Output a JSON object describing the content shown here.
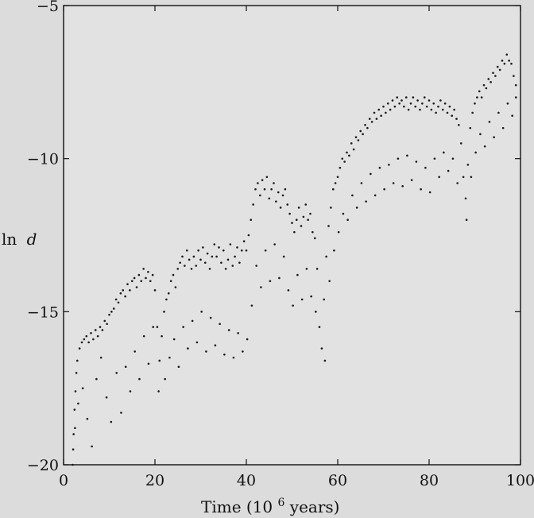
{
  "chart_data": {
    "type": "scatter",
    "title": "",
    "xlabel": "Time (10",
    "xlabel_sup": "6",
    "xlabel_suffix": " years)",
    "ylabel": "ln",
    "ylabel_var": "d",
    "xlim": [
      0,
      100
    ],
    "ylim": [
      -20,
      -5
    ],
    "x_ticks": [
      0,
      20,
      40,
      60,
      80,
      100
    ],
    "x_tick_labels": [
      "0",
      "20",
      "40",
      "60",
      "80",
      "100"
    ],
    "y_ticks": [
      -20,
      -15,
      -10,
      -5
    ],
    "y_tick_labels": [
      "−20",
      "−15",
      "−10",
      "−5"
    ],
    "grid": false,
    "legend": "none",
    "point_color": "#1a1a1a",
    "series": [
      {
        "values": [
          [
            2.0,
            -20.0
          ],
          [
            2.2,
            -19.0
          ],
          [
            2.4,
            -18.2
          ],
          [
            2.6,
            -17.6
          ],
          [
            2.8,
            -17.0
          ],
          [
            3.0,
            -16.6
          ],
          [
            3.5,
            -16.2
          ],
          [
            4.0,
            -16.0
          ],
          [
            4.5,
            -15.9
          ],
          [
            5.0,
            -15.8
          ],
          [
            5.5,
            -16.0
          ],
          [
            6.0,
            -15.7
          ],
          [
            6.5,
            -15.9
          ],
          [
            7.0,
            -15.6
          ],
          [
            7.5,
            -15.8
          ],
          [
            8.0,
            -15.5
          ],
          [
            8.5,
            -15.6
          ],
          [
            9.0,
            -15.3
          ],
          [
            9.5,
            -15.4
          ],
          [
            10.0,
            -15.1
          ],
          [
            10.5,
            -15.0
          ],
          [
            11.0,
            -14.9
          ],
          [
            11.5,
            -14.6
          ],
          [
            12.0,
            -14.7
          ],
          [
            12.5,
            -14.4
          ],
          [
            13.0,
            -14.3
          ],
          [
            13.5,
            -14.5
          ],
          [
            14.0,
            -14.1
          ],
          [
            14.5,
            -14.3
          ],
          [
            15.0,
            -14.0
          ],
          [
            15.5,
            -13.9
          ],
          [
            16.0,
            -14.2
          ],
          [
            16.5,
            -13.8
          ],
          [
            17.0,
            -14.0
          ],
          [
            17.5,
            -13.6
          ],
          [
            18.0,
            -13.9
          ],
          [
            18.5,
            -13.7
          ],
          [
            19.0,
            -14.0
          ],
          [
            19.5,
            -13.8
          ],
          [
            20.0,
            -14.3
          ],
          [
            20.5,
            -15.5
          ],
          [
            21.0,
            -16.6
          ],
          [
            21.5,
            -15.8
          ],
          [
            22.0,
            -15.0
          ],
          [
            22.5,
            -14.6
          ],
          [
            23.0,
            -14.4
          ],
          [
            23.5,
            -14.0
          ],
          [
            24.0,
            -13.8
          ],
          [
            24.5,
            -14.2
          ],
          [
            25.0,
            -13.6
          ],
          [
            25.5,
            -13.4
          ],
          [
            26.0,
            -13.2
          ],
          [
            26.5,
            -13.5
          ],
          [
            27.0,
            -13.0
          ],
          [
            27.5,
            -13.3
          ],
          [
            28.0,
            -13.6
          ],
          [
            28.5,
            -13.2
          ],
          [
            29.0,
            -13.5
          ],
          [
            29.5,
            -13.0
          ],
          [
            30.0,
            -13.3
          ],
          [
            30.5,
            -12.9
          ],
          [
            31.0,
            -13.4
          ],
          [
            31.5,
            -13.1
          ],
          [
            32.0,
            -13.6
          ],
          [
            32.5,
            -13.2
          ],
          [
            33.0,
            -12.8
          ],
          [
            33.5,
            -13.2
          ],
          [
            34.0,
            -12.9
          ],
          [
            34.5,
            -13.4
          ],
          [
            35.0,
            -13.0
          ],
          [
            35.5,
            -13.6
          ],
          [
            36.0,
            -13.3
          ],
          [
            36.5,
            -12.8
          ],
          [
            37.0,
            -13.5
          ],
          [
            37.5,
            -13.2
          ],
          [
            38.0,
            -12.9
          ],
          [
            38.5,
            -13.4
          ],
          [
            39.0,
            -13.0
          ],
          [
            39.5,
            -12.7
          ],
          [
            40.0,
            -13.0
          ],
          [
            40.5,
            -12.5
          ],
          [
            41.0,
            -12.0
          ],
          [
            41.5,
            -11.5
          ],
          [
            42.0,
            -11.0
          ],
          [
            42.5,
            -10.8
          ],
          [
            43.0,
            -11.2
          ],
          [
            43.5,
            -10.7
          ],
          [
            44.0,
            -11.0
          ],
          [
            44.5,
            -10.6
          ],
          [
            45.0,
            -11.3
          ],
          [
            45.5,
            -11.0
          ],
          [
            46.0,
            -10.8
          ],
          [
            46.5,
            -11.4
          ],
          [
            47.0,
            -11.1
          ],
          [
            47.5,
            -11.6
          ],
          [
            48.0,
            -11.2
          ],
          [
            48.5,
            -11.0
          ],
          [
            49.0,
            -11.5
          ],
          [
            49.5,
            -11.8
          ],
          [
            50.0,
            -12.1
          ],
          [
            50.5,
            -12.4
          ],
          [
            51.0,
            -12.0
          ],
          [
            51.5,
            -11.6
          ],
          [
            52.0,
            -12.2
          ],
          [
            52.5,
            -11.9
          ],
          [
            53.0,
            -11.5
          ],
          [
            53.5,
            -12.0
          ],
          [
            54.0,
            -11.8
          ],
          [
            54.5,
            -12.4
          ],
          [
            55.0,
            -12.6
          ],
          [
            55.5,
            -13.6
          ],
          [
            56.0,
            -15.5
          ],
          [
            56.5,
            -16.2
          ],
          [
            57.0,
            -14.6
          ],
          [
            57.5,
            -13.2
          ],
          [
            58.0,
            -12.2
          ],
          [
            58.5,
            -11.6
          ],
          [
            59.0,
            -11.0
          ],
          [
            59.5,
            -10.8
          ],
          [
            60.0,
            -10.6
          ],
          [
            60.5,
            -10.3
          ],
          [
            61.0,
            -10.0
          ],
          [
            61.5,
            -10.1
          ],
          [
            62.0,
            -9.8
          ],
          [
            62.5,
            -9.9
          ],
          [
            63.0,
            -9.5
          ],
          [
            63.5,
            -9.7
          ],
          [
            64.0,
            -9.3
          ],
          [
            64.5,
            -9.4
          ],
          [
            65.0,
            -9.1
          ],
          [
            65.5,
            -9.2
          ],
          [
            66.0,
            -8.9
          ],
          [
            66.5,
            -9.0
          ],
          [
            67.0,
            -8.7
          ],
          [
            67.5,
            -8.8
          ],
          [
            68.0,
            -8.5
          ],
          [
            68.5,
            -8.7
          ],
          [
            69.0,
            -8.4
          ],
          [
            69.5,
            -8.6
          ],
          [
            70.0,
            -8.3
          ],
          [
            70.5,
            -8.5
          ],
          [
            71.0,
            -8.2
          ],
          [
            71.5,
            -8.4
          ],
          [
            72.0,
            -8.1
          ],
          [
            72.5,
            -8.3
          ],
          [
            73.0,
            -8.0
          ],
          [
            73.5,
            -8.2
          ],
          [
            74.0,
            -8.1
          ],
          [
            74.5,
            -8.3
          ],
          [
            75.0,
            -8.0
          ],
          [
            75.5,
            -8.4
          ],
          [
            76.0,
            -8.2
          ],
          [
            76.5,
            -8.0
          ],
          [
            77.0,
            -8.3
          ],
          [
            77.5,
            -8.1
          ],
          [
            78.0,
            -8.4
          ],
          [
            78.5,
            -8.2
          ],
          [
            79.0,
            -8.0
          ],
          [
            79.5,
            -8.3
          ],
          [
            80.0,
            -8.1
          ],
          [
            80.5,
            -8.4
          ],
          [
            81.0,
            -8.2
          ],
          [
            81.5,
            -8.5
          ],
          [
            82.0,
            -8.3
          ],
          [
            82.5,
            -8.1
          ],
          [
            83.0,
            -8.4
          ],
          [
            83.5,
            -8.2
          ],
          [
            84.0,
            -8.5
          ],
          [
            84.5,
            -8.3
          ],
          [
            85.0,
            -8.6
          ],
          [
            85.5,
            -8.4
          ],
          [
            86.0,
            -8.7
          ],
          [
            86.5,
            -8.9
          ],
          [
            87.0,
            -9.5
          ],
          [
            87.5,
            -10.6
          ],
          [
            88.0,
            -11.3
          ],
          [
            88.5,
            -10.2
          ],
          [
            89.0,
            -9.0
          ],
          [
            89.5,
            -8.5
          ],
          [
            90.0,
            -8.2
          ],
          [
            90.5,
            -8.0
          ],
          [
            91.0,
            -7.8
          ],
          [
            91.5,
            -8.0
          ],
          [
            92.0,
            -7.6
          ],
          [
            92.5,
            -7.7
          ],
          [
            93.0,
            -7.4
          ],
          [
            93.5,
            -7.5
          ],
          [
            94.0,
            -7.2
          ],
          [
            94.5,
            -7.3
          ],
          [
            95.0,
            -7.0
          ],
          [
            95.5,
            -7.1
          ],
          [
            96.0,
            -6.8
          ],
          [
            96.5,
            -6.9
          ],
          [
            97.0,
            -6.6
          ],
          [
            97.5,
            -6.8
          ],
          [
            98.0,
            -6.9
          ],
          [
            98.5,
            -7.3
          ],
          [
            99.0,
            -7.6
          ],
          [
            2.1,
            -19.5
          ],
          [
            2.5,
            -18.8
          ],
          [
            3.2,
            -18.0
          ],
          [
            4.2,
            -17.5
          ],
          [
            5.2,
            -18.5
          ],
          [
            6.2,
            -19.4
          ],
          [
            7.2,
            -17.2
          ],
          [
            8.2,
            -16.5
          ],
          [
            9.4,
            -17.8
          ],
          [
            10.4,
            -18.6
          ],
          [
            11.6,
            -17.0
          ],
          [
            12.6,
            -18.3
          ],
          [
            13.6,
            -16.8
          ],
          [
            14.6,
            -17.6
          ],
          [
            15.6,
            -16.3
          ],
          [
            16.6,
            -17.2
          ],
          [
            17.6,
            -15.8
          ],
          [
            18.6,
            -16.7
          ],
          [
            19.6,
            -15.5
          ],
          [
            20.8,
            -17.6
          ],
          [
            22.2,
            -17.2
          ],
          [
            23.2,
            -16.5
          ],
          [
            24.2,
            -15.9
          ],
          [
            25.2,
            -16.8
          ],
          [
            26.2,
            -15.5
          ],
          [
            27.2,
            -16.2
          ],
          [
            28.2,
            -15.3
          ],
          [
            29.2,
            -16.0
          ],
          [
            30.2,
            -15.0
          ],
          [
            31.2,
            -16.3
          ],
          [
            32.2,
            -15.2
          ],
          [
            33.2,
            -16.1
          ],
          [
            34.2,
            -15.4
          ],
          [
            35.2,
            -16.4
          ],
          [
            36.2,
            -15.6
          ],
          [
            37.2,
            -16.5
          ],
          [
            38.2,
            -15.7
          ],
          [
            39.2,
            -16.3
          ],
          [
            40.2,
            -15.9
          ],
          [
            41.2,
            -14.8
          ],
          [
            42.2,
            -13.5
          ],
          [
            43.2,
            -14.2
          ],
          [
            44.2,
            -13.0
          ],
          [
            45.2,
            -14.0
          ],
          [
            46.2,
            -12.8
          ],
          [
            47.2,
            -13.9
          ],
          [
            48.2,
            -13.2
          ],
          [
            49.2,
            -14.3
          ],
          [
            50.2,
            -14.8
          ],
          [
            51.2,
            -13.8
          ],
          [
            52.2,
            -14.6
          ],
          [
            53.2,
            -13.6
          ],
          [
            54.2,
            -14.5
          ],
          [
            55.2,
            -15.0
          ],
          [
            57.2,
            -16.6
          ],
          [
            58.2,
            -14.0
          ],
          [
            59.2,
            -13.0
          ],
          [
            60.2,
            -12.4
          ],
          [
            61.2,
            -11.8
          ],
          [
            62.2,
            -12.0
          ],
          [
            63.2,
            -11.2
          ],
          [
            64.2,
            -11.6
          ],
          [
            65.2,
            -10.8
          ],
          [
            66.2,
            -11.4
          ],
          [
            67.2,
            -10.5
          ],
          [
            68.2,
            -11.2
          ],
          [
            69.2,
            -10.3
          ],
          [
            70.2,
            -11.0
          ],
          [
            71.2,
            -10.2
          ],
          [
            72.2,
            -10.8
          ],
          [
            73.2,
            -10.0
          ],
          [
            74.2,
            -10.9
          ],
          [
            75.2,
            -9.9
          ],
          [
            76.2,
            -10.7
          ],
          [
            77.2,
            -10.1
          ],
          [
            78.2,
            -11.0
          ],
          [
            79.2,
            -10.3
          ],
          [
            80.2,
            -11.1
          ],
          [
            81.2,
            -10.0
          ],
          [
            82.2,
            -10.6
          ],
          [
            83.2,
            -9.8
          ],
          [
            84.2,
            -10.4
          ],
          [
            85.2,
            -10.0
          ],
          [
            86.2,
            -10.8
          ],
          [
            88.2,
            -12.0
          ],
          [
            89.2,
            -10.6
          ],
          [
            90.2,
            -9.8
          ],
          [
            91.2,
            -9.2
          ],
          [
            92.2,
            -9.6
          ],
          [
            93.2,
            -8.8
          ],
          [
            94.2,
            -9.3
          ],
          [
            95.2,
            -8.5
          ],
          [
            96.2,
            -9.0
          ],
          [
            97.2,
            -8.2
          ],
          [
            98.2,
            -8.6
          ],
          [
            99.0,
            -8.0
          ]
        ]
      }
    ]
  }
}
